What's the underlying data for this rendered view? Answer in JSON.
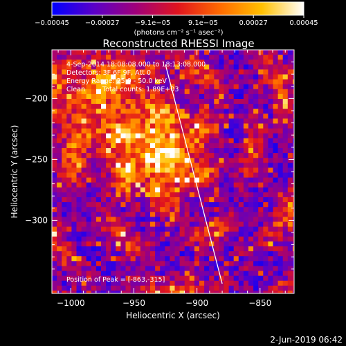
{
  "chart_data": {
    "type": "heatmap",
    "title": "Reconstructed RHESSI Image",
    "colorbar": {
      "ticks": [
        "−0.00045",
        "−0.00027",
        "−9.1e−05",
        "9.1e−05",
        "0.00027",
        "0.00045"
      ],
      "range": [
        -0.00045,
        0.00045
      ],
      "unit_label": "(photons cm⁻² s⁻¹ asec⁻²)",
      "colors": [
        "#0000ff",
        "#5a00c8",
        "#a0007a",
        "#e0141e",
        "#ff6a00",
        "#ffc000",
        "#ffffff"
      ]
    },
    "annotations": {
      "time_range": "4-Sep-2014 18:08:08.000 to 18:13:08.000",
      "detectors": "Detectors: 3F 6F 9F, Att 0",
      "energy": "Energy Range: 25.0 - 50.0 keV",
      "method": "Clean",
      "counts": "Total counts: 1.89E+03",
      "peak": "Position of Peak = [-863,-315]"
    },
    "xlabel": "Heliocentric X (arcsec)",
    "ylabel": "Heliocentric Y (arcsec)",
    "xlim": [
      -1015,
      -823
    ],
    "ylim": [
      -360,
      -160
    ],
    "xticks": [
      -1000,
      -950,
      -900,
      -850
    ],
    "yticks": [
      -200,
      -250,
      -300
    ],
    "x_ticklabels": [
      "−1000",
      "−950",
      "−900",
      "−850"
    ],
    "y_ticklabels": [
      "−200",
      "−250",
      "−300"
    ],
    "limb_line": {
      "x": [
        -925,
        -880
      ],
      "y": [
        -172,
        -352
      ]
    },
    "bright_source": {
      "x": -927,
      "y": -247
    },
    "grid": false
  },
  "footer": {
    "date": "2-Jun-2019 06:42"
  }
}
